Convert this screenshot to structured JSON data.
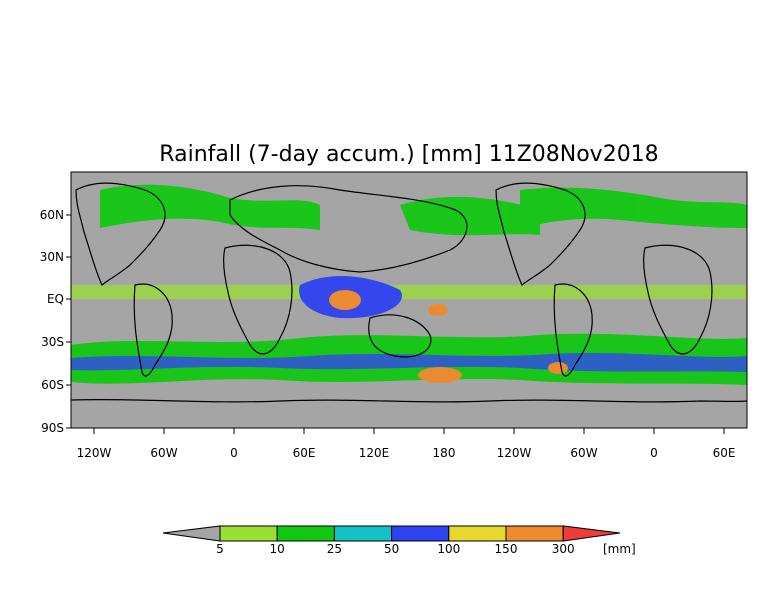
{
  "title": "Rainfall (7-day accum.) [mm] 11Z08Nov2018",
  "lat_labels": [
    "60N",
    "30N",
    "EQ",
    "30S",
    "60S",
    "90S"
  ],
  "lon_labels": [
    "120W",
    "60W",
    "0",
    "60E",
    "120E",
    "180",
    "120W",
    "60W",
    "0",
    "60E"
  ],
  "colorbar": {
    "unit": "[mm]",
    "thresholds": [
      "5",
      "10",
      "25",
      "50",
      "100",
      "150",
      "300"
    ],
    "colors": [
      "#a5a5a5",
      "#99e033",
      "#11c711",
      "#12c2c5",
      "#2d42f1",
      "#e6d82c",
      "#ee8a2c",
      "#f03b3b"
    ]
  },
  "map": {
    "ocean_color": "#a5a5a5",
    "border_color": "#000000"
  }
}
